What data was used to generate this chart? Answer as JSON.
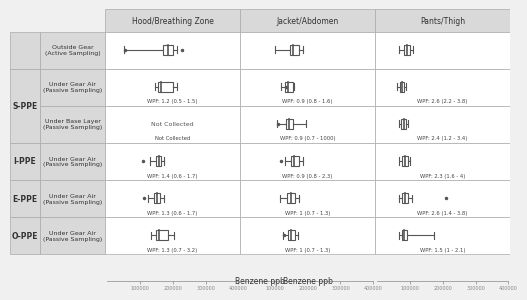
{
  "col_headers": [
    "Hood/Breathing Zone",
    "Jacket/Abdomen",
    "Pants/Thigh"
  ],
  "row_labels_left": [
    "",
    "S-PPE",
    "",
    "I-PPE",
    "E-PPE",
    "O-PPE"
  ],
  "row_sublabels": [
    "Outside Gear\n(Active Sampling)",
    "Under Gear Air\n(Passive Sampling)",
    "Under Base Layer\n(Passive Sampling)",
    "Under Gear Air\n(Passive Sampling)",
    "Under Gear Air\n(Passive Sampling)",
    "Under Gear Air\n(Passive Sampling)"
  ],
  "xmin": 0,
  "xmax": 400000,
  "xticks": [
    100000,
    200000,
    300000,
    400000
  ],
  "xlabel": "Benzene ppb",
  "background_color": "#f0f0f0",
  "cell_background": "#ffffff",
  "header_background": "#d9d9d9",
  "wpf_labels": [
    [
      "",
      "WPF: 1.2 (0.5 - 1.5)",
      "Not Collected",
      "WPF: 1.4 (0.6 - 1.7)",
      "WPF: 1.3 (0.6 - 1.7)",
      "WPF: 1.3 (0.7 - 3.2)"
    ],
    [
      "",
      "WPF: 0.9 (0.8 - 1.6)",
      "WPF: 0.9 (0.7 - 1000)",
      "WPF: 0.9 (0.8 - 2.3)",
      "WPF: 1 (0.7 - 1.3)",
      "WPF: 1 (0.7 - 1.3)"
    ],
    [
      "",
      "WPF: 2.6 (2.2 - 3.8)",
      "WPF: 2.4 (1.2 - 3.4)",
      "WPF: 2.3 (1.6 - 4)",
      "WPF: 2.6 (1.4 - 3.8)",
      "WPF: 1.5 (1 - 2.1)"
    ]
  ],
  "boxes": {
    "row0": {
      "col0": {
        "whisker_lo": 50000,
        "q1": 170000,
        "median": 185000,
        "q3": 200000,
        "whisker_hi": 215000,
        "outliers": [
          55000,
          230000
        ]
      },
      "col1": {
        "whisker_lo": 100000,
        "q1": 145000,
        "median": 155000,
        "q3": 175000,
        "whisker_hi": 185000,
        "outliers": []
      },
      "col2": {
        "whisker_lo": 65000,
        "q1": 80000,
        "median": 90000,
        "q3": 100000,
        "whisker_hi": 110000,
        "outliers": []
      }
    },
    "row1": {
      "col0": {
        "whisker_lo": 145000,
        "q1": 155000,
        "median": 165000,
        "q3": 200000,
        "whisker_hi": 215000,
        "outliers": []
      },
      "col1": {
        "whisker_lo": 120000,
        "q1": 130000,
        "median": 140000,
        "q3": 155000,
        "whisker_hi": 160000,
        "outliers": [
          135000
        ]
      },
      "col2": {
        "whisker_lo": 60000,
        "q1": 68000,
        "median": 75000,
        "q3": 82000,
        "whisker_hi": 88000,
        "outliers": []
      }
    },
    "row2": {
      "col0": null,
      "col1": {
        "whisker_lo": 105000,
        "q1": 135000,
        "median": 143000,
        "q3": 155000,
        "whisker_hi": 195000,
        "outliers": [
          108000
        ]
      },
      "col2": {
        "whisker_lo": 65000,
        "q1": 72000,
        "median": 80000,
        "q3": 88000,
        "whisker_hi": 95000,
        "outliers": []
      }
    },
    "row3": {
      "col0": {
        "whisker_lo": 130000,
        "q1": 148000,
        "median": 157000,
        "q3": 165000,
        "whisker_hi": 175000,
        "outliers": [
          110000
        ]
      },
      "col1": {
        "whisker_lo": 130000,
        "q1": 150000,
        "median": 158000,
        "q3": 175000,
        "whisker_hi": 185000,
        "outliers": [
          120000
        ]
      },
      "col2": {
        "whisker_lo": 65000,
        "q1": 75000,
        "median": 85000,
        "q3": 95000,
        "whisker_hi": 100000,
        "outliers": []
      }
    },
    "row4": {
      "col0": {
        "whisker_lo": 125000,
        "q1": 143000,
        "median": 152000,
        "q3": 162000,
        "whisker_hi": 175000,
        "outliers": [
          112000
        ]
      },
      "col1": {
        "whisker_lo": 115000,
        "q1": 138000,
        "median": 148000,
        "q3": 163000,
        "whisker_hi": 175000,
        "outliers": []
      },
      "col2": {
        "whisker_lo": 65000,
        "q1": 75000,
        "median": 85000,
        "q3": 95000,
        "whisker_hi": 105000,
        "outliers": [
          210000
        ]
      }
    },
    "row5": {
      "col0": {
        "whisker_lo": 135000,
        "q1": 148000,
        "median": 158000,
        "q3": 185000,
        "whisker_hi": 205000,
        "outliers": []
      },
      "col1": {
        "whisker_lo": 125000,
        "q1": 140000,
        "median": 150000,
        "q3": 162000,
        "whisker_hi": 172000,
        "outliers": [
          128000
        ]
      },
      "col2": {
        "whisker_lo": 65000,
        "q1": 75000,
        "median": 82000,
        "q3": 90000,
        "whisker_hi": 175000,
        "outliers": []
      }
    }
  }
}
